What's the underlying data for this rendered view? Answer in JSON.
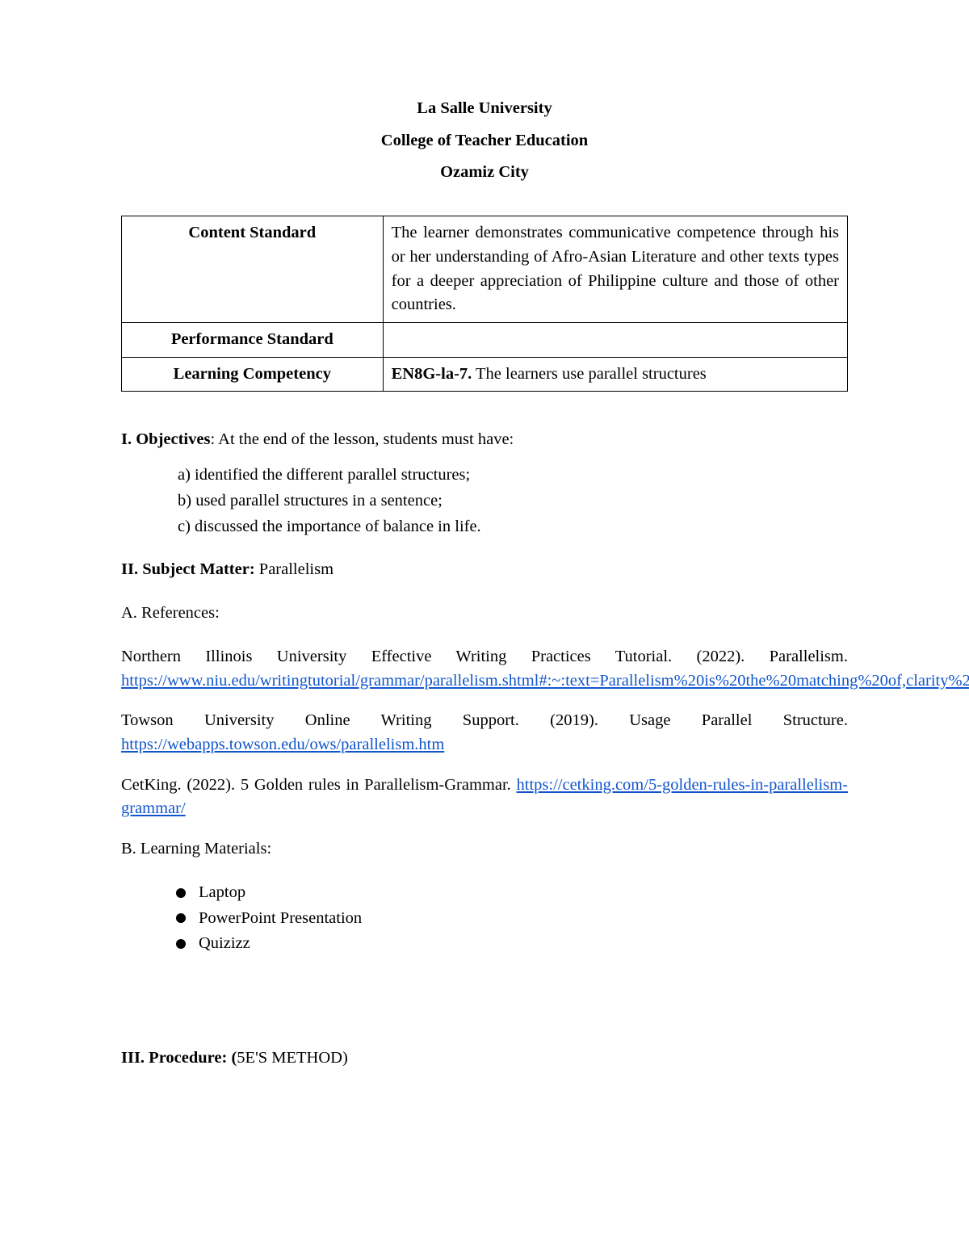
{
  "header": {
    "line1": "La Salle University",
    "line2": "College of Teacher Education",
    "line3": "Ozamiz City"
  },
  "standards": {
    "contentLabel": "Content Standard",
    "contentDesc": "The learner demonstrates communicative competence through his or her understanding of Afro-Asian Literature and other texts types for a deeper appreciation of Philippine culture and those of other countries.",
    "performanceLabel": "Performance Standard",
    "performanceDesc": "",
    "competencyLabel": "Learning Competency",
    "competencyCode": "EN8G-la-7.",
    "competencyDesc": " The learners use parallel structures"
  },
  "objectives": {
    "heading": "I. Objectives",
    "intro": ": At the end of the lesson, students must have:",
    "items": {
      "a": "a)   identified the different parallel structures;",
      "b": "b)   used parallel structures in a sentence;",
      "c": "c)   discussed the importance of balance in life."
    }
  },
  "subject": {
    "heading": "II. Subject Matter:",
    "value": "  Parallelism"
  },
  "refs": {
    "heading": "A. References:",
    "r1text": "Northern Illinois University Effective Writing Practices Tutorial. (2022). Parallelism.",
    "r1link": "https://www.niu.edu/writingtutorial/grammar/parallelism.shtml#:~:text=Parallelism%20is%20the%20matching%20of,clarity%20and%20emphasizes%20your%20points",
    "r2text": "Towson University Online Writing Support. (2019). Usage Parallel Structure.",
    "r2link": "https://webapps.towson.edu/ows/parallelism.htm",
    "r3text": "CetKing. (2022). 5 Golden rules in Parallelism-Grammar. ",
    "r3link": "https://cetking.com/5-golden-rules-in-parallelism-grammar/"
  },
  "materials": {
    "heading": "B. Learning Materials:",
    "items": {
      "m1": "Laptop",
      "m2": "PowerPoint Presentation",
      "m3": "Quizizz"
    }
  },
  "procedure": {
    "heading": "III. Procedure: (",
    "method": "5E'S METHOD)"
  }
}
